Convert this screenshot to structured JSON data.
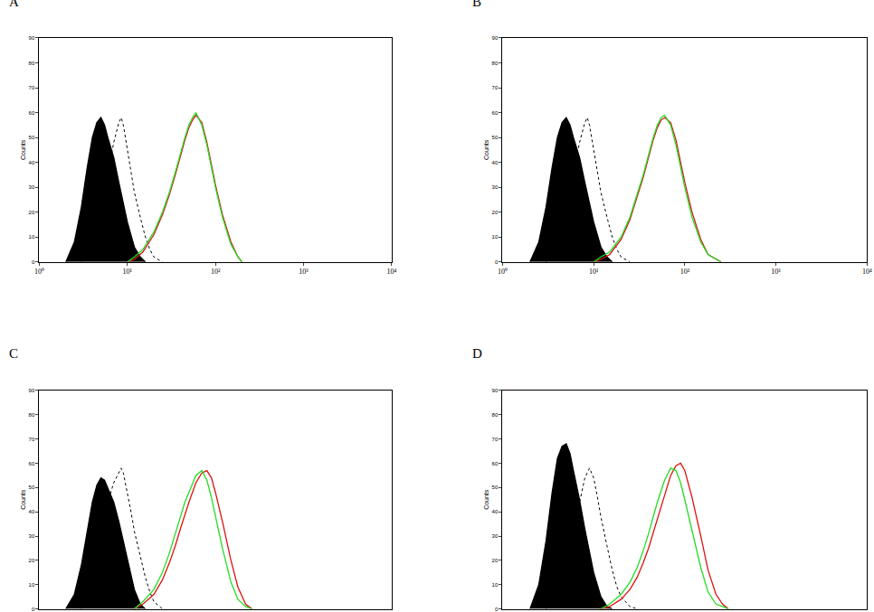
{
  "chart_data": [
    {
      "type": "line",
      "title": "A",
      "y_label": "Counts",
      "log": "x",
      "xlim": [
        1,
        10000
      ],
      "ylim": [
        0,
        90
      ],
      "xticks": [
        {
          "value": 1,
          "label": "10⁰"
        },
        {
          "value": 10,
          "label": "10¹"
        },
        {
          "value": 100,
          "label": "10²"
        },
        {
          "value": 1000,
          "label": "10³"
        },
        {
          "value": 10000,
          "label": "10⁴"
        }
      ],
      "yticks": [
        0,
        10,
        20,
        30,
        40,
        50,
        60,
        70,
        80,
        90
      ],
      "series": [
        {
          "color": "#000000",
          "line_style": "filled",
          "x": [
            2,
            2.5,
            3,
            3.5,
            4,
            4.5,
            5,
            5.5,
            6,
            7,
            8,
            9,
            10,
            12,
            14,
            16
          ],
          "values": [
            0,
            8,
            22,
            38,
            50,
            56,
            58,
            55,
            50,
            42,
            32,
            24,
            16,
            6,
            2,
            0
          ]
        },
        {
          "color": "#000000",
          "line_style": "dotted",
          "x": [
            3,
            4,
            5,
            6,
            7,
            8,
            8.5,
            9,
            10,
            11,
            12,
            14,
            16,
            18,
            20,
            25
          ],
          "values": [
            0,
            8,
            22,
            36,
            48,
            56,
            58,
            55,
            45,
            36,
            28,
            18,
            10,
            5,
            2,
            0
          ]
        },
        {
          "color": "#dd1111",
          "line_style": "solid",
          "x": [
            10,
            12,
            15,
            20,
            25,
            30,
            35,
            40,
            45,
            50,
            55,
            60,
            70,
            80,
            90,
            100,
            120,
            150,
            180,
            200
          ],
          "values": [
            0,
            1,
            4,
            11,
            19,
            27,
            35,
            43,
            49,
            54,
            57,
            59,
            56,
            48,
            39,
            31,
            19,
            8,
            2,
            0
          ]
        },
        {
          "color": "#22dd22",
          "line_style": "solid",
          "x": [
            10,
            12,
            15,
            20,
            25,
            30,
            35,
            40,
            45,
            50,
            55,
            60,
            70,
            80,
            90,
            100,
            120,
            150,
            180,
            200
          ],
          "values": [
            0,
            2,
            5,
            12,
            20,
            28,
            36,
            44,
            50,
            55,
            58,
            60,
            55,
            47,
            38,
            30,
            18,
            7,
            2,
            0
          ]
        }
      ]
    },
    {
      "type": "line",
      "title": "B",
      "y_label": "Counts",
      "log": "x",
      "xlim": [
        1,
        10000
      ],
      "ylim": [
        0,
        90
      ],
      "xticks": [
        {
          "value": 1,
          "label": "10⁰"
        },
        {
          "value": 10,
          "label": "10¹"
        },
        {
          "value": 100,
          "label": "10²"
        },
        {
          "value": 1000,
          "label": "10³"
        },
        {
          "value": 10000,
          "label": "10⁴"
        }
      ],
      "yticks": [
        0,
        10,
        20,
        30,
        40,
        50,
        60,
        70,
        80,
        90
      ],
      "series": [
        {
          "color": "#000000",
          "line_style": "filled",
          "x": [
            2,
            2.5,
            3,
            3.5,
            4,
            4.5,
            5,
            5.5,
            6,
            7,
            8,
            9,
            10,
            12,
            14,
            16
          ],
          "values": [
            0,
            8,
            22,
            38,
            50,
            56,
            58,
            55,
            50,
            42,
            32,
            24,
            16,
            6,
            2,
            0
          ]
        },
        {
          "color": "#000000",
          "line_style": "dotted",
          "x": [
            3,
            4,
            5,
            6,
            7,
            8,
            8.5,
            9,
            10,
            11,
            12,
            14,
            16,
            18,
            20,
            25
          ],
          "values": [
            0,
            8,
            22,
            36,
            48,
            56,
            58,
            55,
            45,
            36,
            28,
            18,
            10,
            5,
            2,
            0
          ]
        },
        {
          "color": "#dd1111",
          "line_style": "solid",
          "x": [
            10,
            12,
            15,
            20,
            25,
            30,
            35,
            40,
            45,
            50,
            55,
            60,
            70,
            80,
            90,
            100,
            120,
            150,
            180,
            220,
            250
          ],
          "values": [
            0,
            1,
            3,
            9,
            17,
            26,
            34,
            42,
            49,
            54,
            57,
            58,
            56,
            49,
            40,
            32,
            20,
            9,
            3,
            1,
            0
          ]
        },
        {
          "color": "#22dd22",
          "line_style": "solid",
          "x": [
            10,
            12,
            15,
            20,
            25,
            30,
            35,
            40,
            45,
            50,
            55,
            60,
            70,
            80,
            90,
            100,
            120,
            150,
            180,
            220,
            250
          ],
          "values": [
            0,
            2,
            4,
            10,
            18,
            27,
            35,
            43,
            50,
            55,
            58,
            59,
            55,
            47,
            38,
            30,
            18,
            8,
            3,
            1,
            0
          ]
        }
      ]
    },
    {
      "type": "line",
      "title": "C",
      "y_label": "Counts",
      "log": "x",
      "tick_labels": "y",
      "xlim": [
        1,
        10000
      ],
      "ylim": [
        0,
        90
      ],
      "yticks": [
        0,
        10,
        20,
        30,
        40,
        50,
        60,
        70,
        80,
        90
      ],
      "series": [
        {
          "color": "#000000",
          "line_style": "filled",
          "x": [
            2,
            2.5,
            3,
            3.5,
            4,
            4.5,
            5,
            5.5,
            6,
            7,
            8,
            9,
            10,
            12,
            14,
            16
          ],
          "values": [
            0,
            6,
            18,
            32,
            44,
            51,
            54,
            53,
            50,
            44,
            36,
            28,
            20,
            8,
            2,
            0
          ]
        },
        {
          "color": "#000000",
          "line_style": "dotted",
          "x": [
            3,
            4,
            5,
            6,
            7,
            8,
            8.5,
            9,
            10,
            11,
            12,
            14,
            16,
            18,
            20,
            25
          ],
          "values": [
            0,
            10,
            28,
            44,
            52,
            56,
            58,
            56,
            48,
            40,
            32,
            22,
            13,
            7,
            3,
            0
          ]
        },
        {
          "color": "#dd1111",
          "line_style": "solid",
          "x": [
            12,
            15,
            20,
            25,
            30,
            35,
            40,
            45,
            50,
            60,
            70,
            80,
            90,
            100,
            120,
            150,
            180,
            220,
            260
          ],
          "values": [
            0,
            2,
            6,
            12,
            19,
            26,
            33,
            39,
            44,
            52,
            56,
            57,
            54,
            48,
            36,
            20,
            9,
            2,
            0
          ]
        },
        {
          "color": "#22dd22",
          "line_style": "solid",
          "x": [
            12,
            15,
            20,
            25,
            30,
            35,
            40,
            45,
            50,
            60,
            70,
            80,
            90,
            100,
            120,
            150,
            180,
            220,
            260
          ],
          "values": [
            0,
            3,
            8,
            15,
            23,
            31,
            38,
            44,
            48,
            55,
            57,
            53,
            46,
            38,
            25,
            11,
            4,
            1,
            0
          ]
        }
      ]
    },
    {
      "type": "line",
      "title": "D",
      "y_label": "Counts",
      "log": "x",
      "tick_labels": "y",
      "xlim": [
        1,
        10000
      ],
      "ylim": [
        0,
        90
      ],
      "yticks": [
        0,
        10,
        20,
        30,
        40,
        50,
        60,
        70,
        80,
        90
      ],
      "series": [
        {
          "color": "#000000",
          "line_style": "filled",
          "x": [
            2,
            2.5,
            3,
            3.5,
            4,
            4.5,
            5,
            5.5,
            6,
            7,
            8,
            9,
            10,
            12,
            14,
            16
          ],
          "values": [
            0,
            10,
            28,
            48,
            62,
            67,
            68,
            64,
            57,
            45,
            33,
            23,
            15,
            5,
            1,
            0
          ]
        },
        {
          "color": "#000000",
          "line_style": "dotted",
          "x": [
            3,
            4,
            5,
            6,
            7,
            8,
            9,
            10,
            11,
            12,
            14,
            16,
            18,
            20,
            25,
            30
          ],
          "values": [
            0,
            6,
            18,
            32,
            45,
            54,
            58,
            54,
            46,
            38,
            26,
            16,
            9,
            5,
            1,
            0
          ]
        },
        {
          "color": "#dd1111",
          "line_style": "solid",
          "x": [
            12,
            15,
            20,
            25,
            30,
            35,
            40,
            50,
            60,
            70,
            80,
            90,
            100,
            120,
            150,
            180,
            220,
            260,
            300
          ],
          "values": [
            0,
            1,
            4,
            8,
            13,
            19,
            25,
            37,
            47,
            55,
            59,
            60,
            57,
            46,
            30,
            16,
            6,
            2,
            0
          ]
        },
        {
          "color": "#22dd22",
          "line_style": "solid",
          "x": [
            12,
            15,
            20,
            25,
            30,
            35,
            40,
            50,
            60,
            70,
            80,
            90,
            100,
            120,
            150,
            180,
            220,
            260,
            300
          ],
          "values": [
            0,
            2,
            6,
            11,
            17,
            24,
            31,
            44,
            53,
            58,
            57,
            52,
            45,
            32,
            17,
            7,
            2,
            1,
            0
          ]
        }
      ]
    }
  ]
}
